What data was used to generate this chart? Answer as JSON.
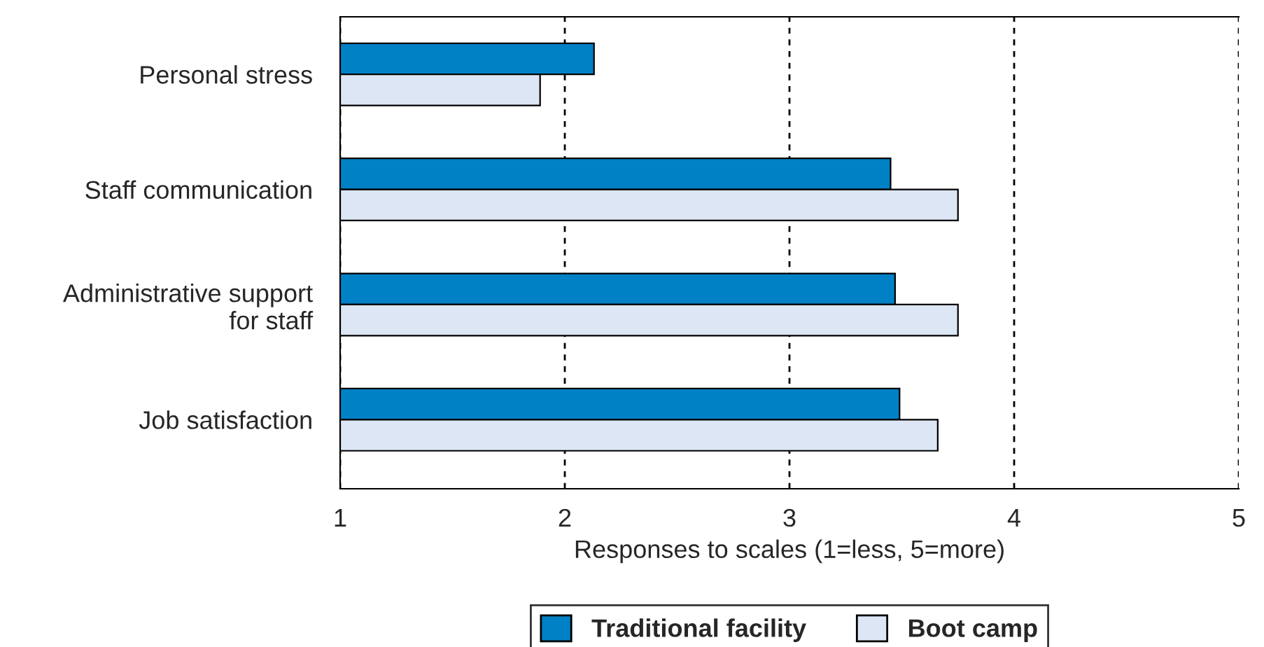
{
  "chart_data": {
    "type": "bar",
    "orientation": "horizontal",
    "categories": [
      "Personal stress",
      "Staff communication",
      "Administrative support\nfor staff",
      "Job satisfaction"
    ],
    "series": [
      {
        "name": "Traditional facility",
        "color": "#0081c6",
        "values": [
          2.13,
          3.45,
          3.47,
          3.49
        ]
      },
      {
        "name": "Boot camp",
        "color": "#dce6f4",
        "values": [
          1.89,
          3.75,
          3.75,
          3.66
        ]
      }
    ],
    "xlabel": "Responses to scales (1=less, 5=more)",
    "xlim": [
      1,
      5
    ],
    "xticks": [
      1,
      2,
      3,
      4,
      5
    ],
    "grid": "x",
    "legend": "bottom"
  }
}
